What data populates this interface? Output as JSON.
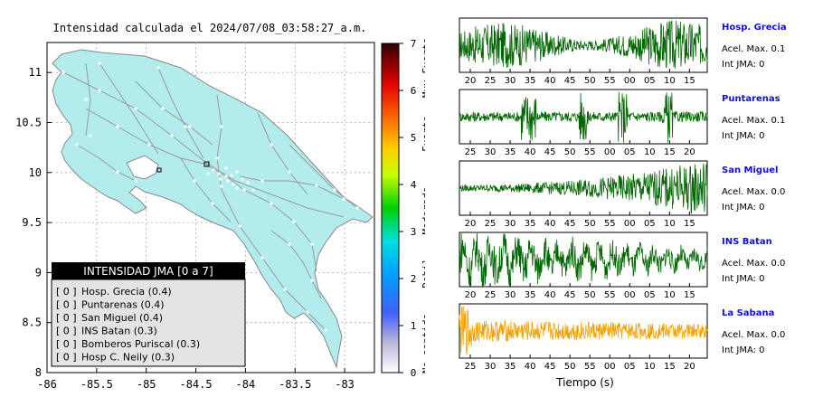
{
  "map": {
    "title": "Intensidad calculada el 2024/07/08_03:58:27_a.m.",
    "colors": {
      "land": "#b3ecec",
      "roads": "#9a9a9a",
      "border": "#555555",
      "legend_header": "#000000",
      "legend_body": "#e4e4e4"
    },
    "legend": {
      "title": "INTENSIDAD JMA [0 a 7]",
      "items": [
        {
          "value": "[ 0 ]",
          "label": "Hosp. Grecia (0.4)"
        },
        {
          "value": "[ 0 ]",
          "label": "Puntarenas (0.4)"
        },
        {
          "value": "[ 0 ]",
          "label": "San Miguel (0.4)"
        },
        {
          "value": "[ 0 ]",
          "label": "INS Batan (0.3)"
        },
        {
          "value": "[ 0 ]",
          "label": "Bomberos Puriscal (0.3)"
        },
        {
          "value": "[ 0 ]",
          "label": "Hosp C. Neily (0.3)"
        }
      ]
    },
    "colorbar": {
      "ticks": [
        "0",
        "1",
        "2",
        "3",
        "4",
        "5",
        "6",
        "7"
      ],
      "labels": [
        "No sentido",
        "Debil",
        "Moderado",
        "Fuerte",
        "Muy Fuerte"
      ]
    }
  },
  "chart_data": [
    {
      "type": "scatter",
      "title": "Intensidad calculada el 2024/07/08_03:58:27_a.m.",
      "x_ticks": [
        "-86",
        "-85.5",
        "-85",
        "-84.5",
        "-84",
        "-83.5",
        "-83"
      ],
      "y_ticks": [
        "8",
        "8.5",
        "9",
        "9.5",
        "10",
        "10.5",
        "11"
      ],
      "xlim": [
        -86,
        -82.7
      ],
      "ylim": [
        8,
        11.3
      ],
      "series": [
        {
          "name": "Hosp. Grecia",
          "x": [
            -84.31
          ],
          "y": [
            10.07
          ],
          "value": 0.4
        },
        {
          "name": "Puntarenas",
          "x": [
            -84.83
          ],
          "y": [
            9.98
          ],
          "value": 0.4
        },
        {
          "name": "San Miguel",
          "x": [
            -84.05
          ],
          "y": [
            9.95
          ],
          "value": 0.4
        },
        {
          "name": "INS Batan",
          "x": [
            -83.35
          ],
          "y": [
            10.08
          ],
          "value": 0.3
        },
        {
          "name": "Bomberos Puriscal",
          "x": [
            -84.32
          ],
          "y": [
            9.85
          ],
          "value": 0.3
        },
        {
          "name": "Hosp C. Neily",
          "x": [
            -82.95
          ],
          "y": [
            8.65
          ],
          "value": 0.3
        }
      ]
    },
    {
      "type": "line",
      "xlabel": "Tiempo (s)",
      "stations": [
        {
          "name": "Hosp. Grecia",
          "acel": "Acel. Max. 0.1",
          "int": "Int JMA: 0",
          "color": "#006400",
          "ticks": [
            "20",
            "25",
            "30",
            "35",
            "40",
            "45",
            "50",
            "55",
            "00",
            "05",
            "10",
            "15"
          ],
          "amplitude": 0.55,
          "envelope": "mixed"
        },
        {
          "name": "Puntarenas",
          "acel": "Acel. Max. 0.1",
          "int": "Int JMA: 0",
          "color": "#006400",
          "ticks": [
            "25",
            "30",
            "35",
            "40",
            "45",
            "50",
            "55",
            "00",
            "05",
            "10",
            "15",
            "20"
          ],
          "amplitude": 0.45,
          "envelope": "bursts"
        },
        {
          "name": "San Miguel",
          "acel": "Acel. Max. 0.0",
          "int": "Int JMA: 0",
          "color": "#006400",
          "ticks": [
            "20",
            "25",
            "30",
            "35",
            "40",
            "45",
            "50",
            "55",
            "00",
            "05",
            "10",
            "15"
          ],
          "amplitude": 0.6,
          "envelope": "growing"
        },
        {
          "name": "INS Batan",
          "acel": "Acel. Max. 0.0",
          "int": "Int JMA: 0",
          "color": "#006400",
          "ticks": [
            "20",
            "25",
            "30",
            "35",
            "40",
            "45",
            "50",
            "55",
            "00",
            "05",
            "10",
            "15"
          ],
          "amplitude": 0.5,
          "envelope": "decaying"
        },
        {
          "name": "La Sabana",
          "acel": "Acel. Max. 0.0",
          "int": "Int JMA: 0",
          "color": "#f0a000",
          "ticks": [
            "25",
            "30",
            "35",
            "40",
            "45",
            "50",
            "55",
            "00",
            "05",
            "10",
            "15",
            "20"
          ],
          "amplitude": 0.45,
          "envelope": "spike-start"
        }
      ]
    }
  ]
}
